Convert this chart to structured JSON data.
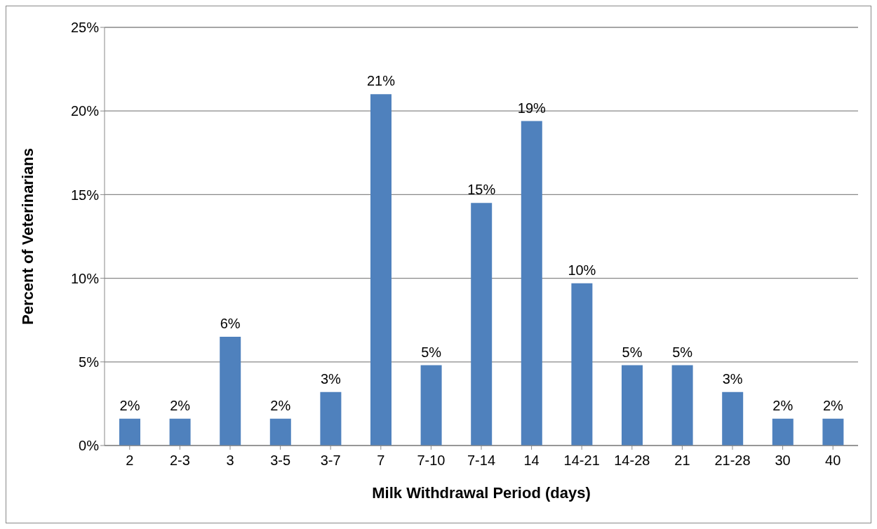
{
  "chart_data": {
    "type": "bar",
    "xlabel": "Milk Withdrawal Period (days)",
    "ylabel": "Percent of Veterinarians",
    "categories": [
      "2",
      "2-3",
      "3",
      "3-5",
      "3-7",
      "7",
      "7-10",
      "7-14",
      "14",
      "14-21",
      "14-28",
      "21",
      "21-28",
      "30",
      "40"
    ],
    "values": [
      1.6,
      1.6,
      6.5,
      1.6,
      3.2,
      21.0,
      4.8,
      14.5,
      19.4,
      9.7,
      4.8,
      4.8,
      3.2,
      1.6,
      1.6
    ],
    "value_labels": [
      "2%",
      "2%",
      "6%",
      "2%",
      "3%",
      "21%",
      "5%",
      "15%",
      "19%",
      "10%",
      "5%",
      "5%",
      "3%",
      "2%",
      "2%"
    ],
    "color": "#4f81bd",
    "ylim": [
      0,
      25
    ],
    "yticks": [
      {
        "value": 0,
        "label": "0%"
      },
      {
        "value": 5,
        "label": "5%"
      },
      {
        "value": 10,
        "label": "10%"
      },
      {
        "value": 15,
        "label": "15%"
      },
      {
        "value": 20,
        "label": "20%"
      },
      {
        "value": 25,
        "label": "25%"
      }
    ],
    "grid": "y",
    "legend": false
  }
}
